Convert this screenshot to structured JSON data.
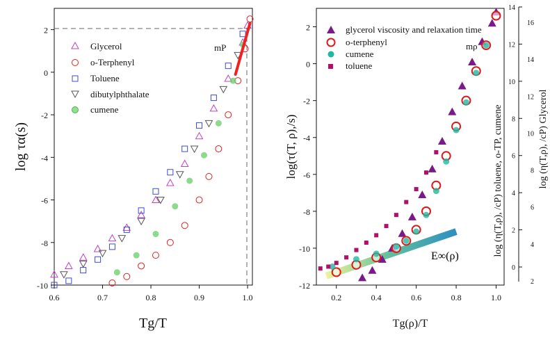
{
  "chart_data": [
    {
      "type": "scatter",
      "xlabel": "Tg/T",
      "ylabel": "log τα(s)",
      "xlim": [
        0.6,
        1.01
      ],
      "ylim": [
        -10,
        3
      ],
      "xticks": [
        "0.6",
        "0.7",
        "0.8",
        "0.9",
        "1.0"
      ],
      "yticks": [
        "-10",
        "-8",
        "-6",
        "-4",
        "-2",
        "0",
        "2"
      ],
      "annotations": {
        "mp": "mP"
      },
      "reference_lines": {
        "y": 2,
        "x": 1.0
      },
      "mp_segment": {
        "x": [
          0.975,
          1.005
        ],
        "y": [
          -0.1,
          2.3
        ],
        "color": "#ee2222"
      },
      "series": [
        {
          "name": "Glycerol",
          "marker": "triangle",
          "color": "#c040c8",
          "points": [
            [
              0.6,
              -9.5
            ],
            [
              0.63,
              -9.1
            ],
            [
              0.66,
              -8.7
            ],
            [
              0.69,
              -8.3
            ],
            [
              0.72,
              -7.8
            ],
            [
              0.75,
              -7.3
            ],
            [
              0.78,
              -6.7
            ],
            [
              0.81,
              -6.0
            ],
            [
              0.84,
              -5.2
            ],
            [
              0.87,
              -4.3
            ],
            [
              0.9,
              -3.0
            ],
            [
              0.93,
              -1.7
            ],
            [
              0.96,
              -0.3
            ],
            [
              0.99,
              1.4
            ],
            [
              1.0,
              2.2
            ]
          ]
        },
        {
          "name": "o-Terphenyl",
          "marker": "circle",
          "color": "#e02020",
          "points": [
            [
              0.72,
              -9.9
            ],
            [
              0.75,
              -9.6
            ],
            [
              0.78,
              -9.1
            ],
            [
              0.81,
              -8.6
            ],
            [
              0.84,
              -8.0
            ],
            [
              0.87,
              -7.2
            ],
            [
              0.9,
              -6.0
            ],
            [
              0.92,
              -4.9
            ],
            [
              0.94,
              -3.6
            ],
            [
              0.96,
              -2.0
            ],
            [
              0.98,
              -0.4
            ],
            [
              0.995,
              1.1
            ],
            [
              1.005,
              2.5
            ]
          ]
        },
        {
          "name": "Toluene",
          "marker": "square",
          "color": "#3c4ccc",
          "points": [
            [
              0.6,
              -10.0
            ],
            [
              0.63,
              -9.8
            ],
            [
              0.66,
              -9.3
            ],
            [
              0.69,
              -8.8
            ],
            [
              0.72,
              -8.2
            ],
            [
              0.75,
              -7.4
            ],
            [
              0.78,
              -6.5
            ],
            [
              0.81,
              -5.6
            ],
            [
              0.84,
              -4.7
            ],
            [
              0.87,
              -3.6
            ],
            [
              0.9,
              -2.5
            ],
            [
              0.93,
              -1.2
            ],
            [
              0.96,
              0.3
            ],
            [
              0.99,
              1.8
            ]
          ]
        },
        {
          "name": "dibutylphthalate",
          "marker": "triangle-down",
          "color": "#555555",
          "points": [
            [
              0.62,
              -9.5
            ],
            [
              0.66,
              -9.0
            ],
            [
              0.7,
              -8.5
            ],
            [
              0.74,
              -7.8
            ],
            [
              0.78,
              -7.0
            ],
            [
              0.82,
              -6.0
            ],
            [
              0.86,
              -4.8
            ],
            [
              0.89,
              -3.6
            ],
            [
              0.92,
              -2.4
            ],
            [
              0.95,
              -0.8
            ],
            [
              0.98,
              0.8
            ]
          ]
        },
        {
          "name": "cumene",
          "marker": "circle-filled",
          "color": "#70d070",
          "points": [
            [
              0.73,
              -9.4
            ],
            [
              0.77,
              -8.6
            ],
            [
              0.81,
              -7.6
            ],
            [
              0.85,
              -6.3
            ],
            [
              0.88,
              -5.1
            ],
            [
              0.91,
              -3.9
            ],
            [
              0.94,
              -2.4
            ],
            [
              0.97,
              -0.4
            ],
            [
              0.99,
              1.3
            ]
          ]
        }
      ]
    },
    {
      "type": "scatter",
      "xlabel": "Tg(ρ)/T",
      "ylabel": "log(τ(T, ρ),/s)",
      "ylabel_right_inner": "log (η(T,ρ), /cP) toluene, o-TP, cumene",
      "ylabel_right_outer": "log (η(T,ρ), /cP) Glycerol",
      "xlim": [
        0.1,
        1.04
      ],
      "ylim": [
        -12,
        3
      ],
      "xticks": [
        "0.2",
        "0.4",
        "0.6",
        "0.8",
        "1.0"
      ],
      "yticks": [
        "-12",
        "-10",
        "-8",
        "-6",
        "-4",
        "-2",
        "0",
        "2"
      ],
      "yticks_right_inner": [
        "0",
        "2",
        "4",
        "6",
        "8",
        "10",
        "12",
        "14"
      ],
      "yticks_right_outer": [
        "2",
        "4",
        "6",
        "8",
        "10",
        "12",
        "14",
        "16"
      ],
      "annotations": {
        "mp": "mρ",
        "einf": "E∞(ρ)"
      },
      "einf_band": {
        "x": [
          0.15,
          0.8
        ],
        "y": [
          -11.5,
          -9.1
        ]
      },
      "series": [
        {
          "name": "glycerol viscosity and relaxation time",
          "marker": "triangle-filled",
          "color": "#7a1a8a",
          "points": [
            [
              0.33,
              -11.6
            ],
            [
              0.38,
              -11.2
            ],
            [
              0.43,
              -10.6
            ],
            [
              0.48,
              -10.0
            ],
            [
              0.53,
              -9.2
            ],
            [
              0.58,
              -8.3
            ],
            [
              0.63,
              -7.1
            ],
            [
              0.68,
              -5.7
            ],
            [
              0.73,
              -4.2
            ],
            [
              0.78,
              -2.6
            ],
            [
              0.83,
              -1.2
            ],
            [
              0.88,
              0.1
            ],
            [
              0.93,
              1.2
            ],
            [
              0.98,
              2.2
            ],
            [
              1.0,
              2.8
            ]
          ]
        },
        {
          "name": "o-terphenyl",
          "marker": "circle-large",
          "color": "#e01818",
          "points": [
            [
              0.2,
              -11.3
            ],
            [
              0.3,
              -10.9
            ],
            [
              0.4,
              -10.5
            ],
            [
              0.5,
              -10.0
            ],
            [
              0.55,
              -9.6
            ],
            [
              0.6,
              -9.0
            ],
            [
              0.65,
              -8.0
            ],
            [
              0.7,
              -6.6
            ],
            [
              0.75,
              -5.0
            ],
            [
              0.8,
              -3.4
            ],
            [
              0.85,
              -2.0
            ],
            [
              0.9,
              -0.4
            ],
            [
              0.95,
              1.0
            ],
            [
              1.0,
              2.6
            ]
          ]
        },
        {
          "name": "cumene",
          "marker": "circle-filled",
          "color": "#20b8a0",
          "points": [
            [
              0.18,
              -11.0
            ],
            [
              0.3,
              -10.6
            ],
            [
              0.4,
              -10.3
            ],
            [
              0.5,
              -9.9
            ],
            [
              0.55,
              -9.6
            ],
            [
              0.6,
              -9.1
            ],
            [
              0.65,
              -8.2
            ],
            [
              0.7,
              -6.9
            ],
            [
              0.75,
              -5.3
            ],
            [
              0.8,
              -3.6
            ],
            [
              0.85,
              -2.1
            ],
            [
              0.9,
              -0.5
            ],
            [
              0.95,
              1.0
            ]
          ]
        },
        {
          "name": "toluene",
          "marker": "square-filled",
          "color": "#b0106a",
          "points": [
            [
              0.12,
              -11.1
            ],
            [
              0.16,
              -11.0
            ],
            [
              0.2,
              -10.8
            ],
            [
              0.25,
              -10.5
            ],
            [
              0.3,
              -10.1
            ],
            [
              0.35,
              -9.7
            ],
            [
              0.4,
              -9.3
            ],
            [
              0.45,
              -8.8
            ],
            [
              0.5,
              -8.2
            ],
            [
              0.55,
              -7.5
            ],
            [
              0.6,
              -6.8
            ],
            [
              0.65,
              -5.9
            ],
            [
              0.7,
              -4.8
            ]
          ]
        }
      ]
    }
  ]
}
